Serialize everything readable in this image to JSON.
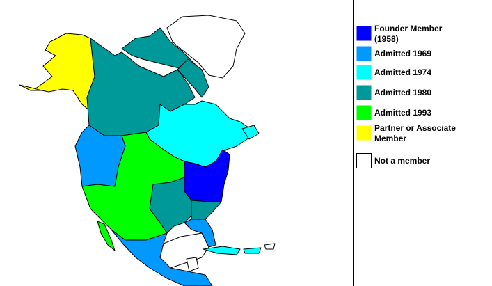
{
  "legend": {
    "items": [
      {
        "label": "Founder Member (1958)",
        "color": "#0000ff"
      },
      {
        "label": "Admitted 1969",
        "color": "#0099ff"
      },
      {
        "label": "Admitted 1974",
        "color": "#00ffff"
      },
      {
        "label": "Admitted 1980",
        "color": "#009999"
      },
      {
        "label": "Admitted 1993",
        "color": "#00ff00"
      },
      {
        "label": "Partner or Associate Member",
        "color": "#ffff00"
      },
      {
        "label": "Not a member",
        "color": "#ffffff"
      }
    ]
  }
}
